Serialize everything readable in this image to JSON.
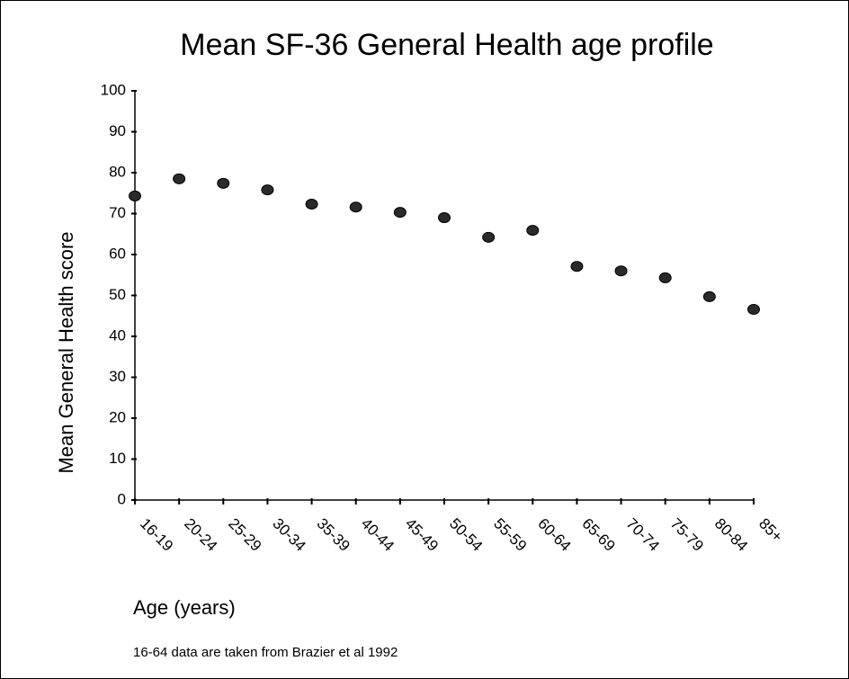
{
  "chart_data": {
    "type": "scatter",
    "title": "Mean SF-36 General Health age profile",
    "x_label": "Age (years)",
    "y_label": "Mean General Health score",
    "note": "16-64 data are taken from Brazier et al 1992",
    "categories": [
      "16-19",
      "20-24",
      "25-29",
      "30-34",
      "35-39",
      "40-44",
      "45-49",
      "50-54",
      "55-59",
      "60-64",
      "65-69",
      "70-74",
      "75-79",
      "80-84",
      "85+"
    ],
    "values": [
      74.3,
      78.5,
      77.4,
      75.8,
      72.3,
      71.6,
      70.3,
      69,
      64.2,
      65.9,
      57.1,
      56,
      54.3,
      49.7,
      46.6
    ],
    "color": "#2a2a2a",
    "ylim": [
      0,
      100
    ],
    "yticks": [
      0,
      10,
      20,
      30,
      40,
      50,
      60,
      70,
      80,
      90,
      100
    ],
    "grid": false
  }
}
